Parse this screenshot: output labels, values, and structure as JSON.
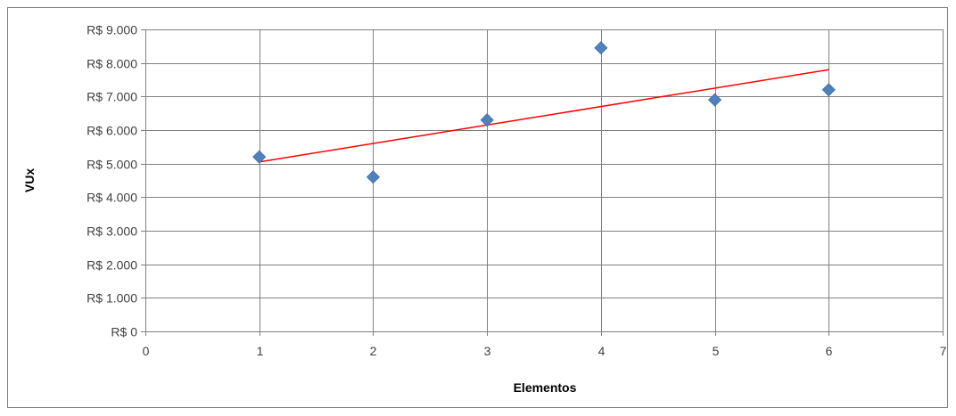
{
  "chart_data": {
    "type": "scatter",
    "title": "",
    "xlabel": "Elementos",
    "ylabel": "VUx",
    "xlim": [
      0,
      7
    ],
    "ylim": [
      0,
      9000
    ],
    "x_ticks": [
      0,
      1,
      2,
      3,
      4,
      5,
      6,
      7
    ],
    "x_tick_labels": [
      "0",
      "1",
      "2",
      "3",
      "4",
      "5",
      "6",
      "7"
    ],
    "y_ticks": [
      0,
      1000,
      2000,
      3000,
      4000,
      5000,
      6000,
      7000,
      8000,
      9000
    ],
    "y_tick_labels": [
      "R$ 0",
      "R$ 1.000",
      "R$ 2.000",
      "R$ 3.000",
      "R$ 4.000",
      "R$ 5.000",
      "R$ 6.000",
      "R$ 7.000",
      "R$ 8.000",
      "R$ 9.000"
    ],
    "grid": true,
    "legend": "none",
    "series": [
      {
        "kind": "points",
        "marker": "diamond",
        "color": "#4f81bd",
        "x": [
          1,
          2,
          3,
          4,
          5,
          6
        ],
        "y": [
          5200,
          4600,
          6300,
          8450,
          6900,
          7200
        ]
      },
      {
        "kind": "trendline",
        "color": "#ff0000",
        "x": [
          1,
          6
        ],
        "y": [
          5050,
          7800
        ]
      }
    ]
  }
}
